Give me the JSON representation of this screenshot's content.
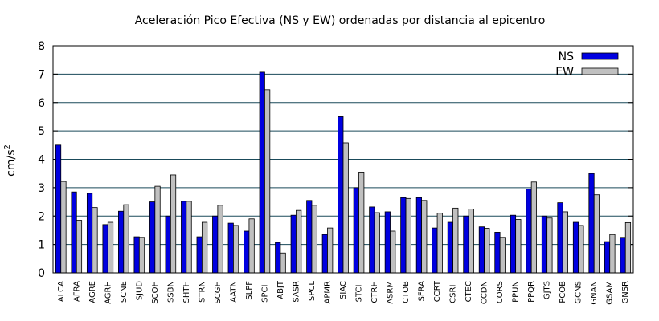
{
  "chart_data": {
    "type": "bar",
    "title": "Aceleración Pico Efectiva (NS y EW) ordenadas por distancia al epicentro",
    "ylabel": "cm/s",
    "ylabel_exponent": "2",
    "xlabel": "",
    "ylim": [
      0,
      8
    ],
    "yticks": [
      "0",
      "1",
      "2",
      "3",
      "4",
      "5",
      "6",
      "7",
      "8"
    ],
    "grid": "horizontal",
    "legend_position": "top-right",
    "categories": [
      "ALCA",
      "AFRA",
      "AGRE",
      "AGRH",
      "SCNE",
      "SJUD",
      "SCOH",
      "SSBN",
      "SHTH",
      "STRN",
      "SCGH",
      "AATN",
      "SLPF",
      "SPCH",
      "ABJT",
      "SASR",
      "SPCL",
      "APMR",
      "SIAC",
      "STCH",
      "CTRH",
      "ASRM",
      "CTOB",
      "SFRA",
      "CCRT",
      "CSRH",
      "CTEC",
      "CCDN",
      "CORS",
      "PPUN",
      "PPQR",
      "GJTS",
      "PCOB",
      "GCNS",
      "GNAN",
      "GSAM",
      "GNSR"
    ],
    "series": [
      {
        "name": "NS",
        "color": "#0000e0",
        "values": [
          4.5,
          2.85,
          2.8,
          1.7,
          2.17,
          1.27,
          2.5,
          2.0,
          2.52,
          1.27,
          2.0,
          1.75,
          1.47,
          7.07,
          1.07,
          2.03,
          2.55,
          1.35,
          5.5,
          3.0,
          2.32,
          2.15,
          2.65,
          2.65,
          1.58,
          1.78,
          2.0,
          1.62,
          1.43,
          2.03,
          2.95,
          2.0,
          2.47,
          1.78,
          3.5,
          1.1,
          1.25
        ]
      },
      {
        "name": "EW",
        "color": "#c0c0c0",
        "values": [
          3.22,
          1.85,
          2.3,
          1.78,
          2.4,
          1.25,
          3.05,
          3.45,
          2.52,
          1.78,
          2.38,
          1.67,
          1.9,
          6.45,
          0.7,
          2.2,
          2.38,
          1.58,
          4.58,
          3.55,
          2.12,
          1.47,
          2.62,
          2.55,
          2.1,
          2.28,
          2.25,
          1.57,
          1.25,
          1.88,
          3.2,
          1.93,
          2.15,
          1.67,
          2.75,
          1.35,
          1.77
        ]
      }
    ]
  }
}
